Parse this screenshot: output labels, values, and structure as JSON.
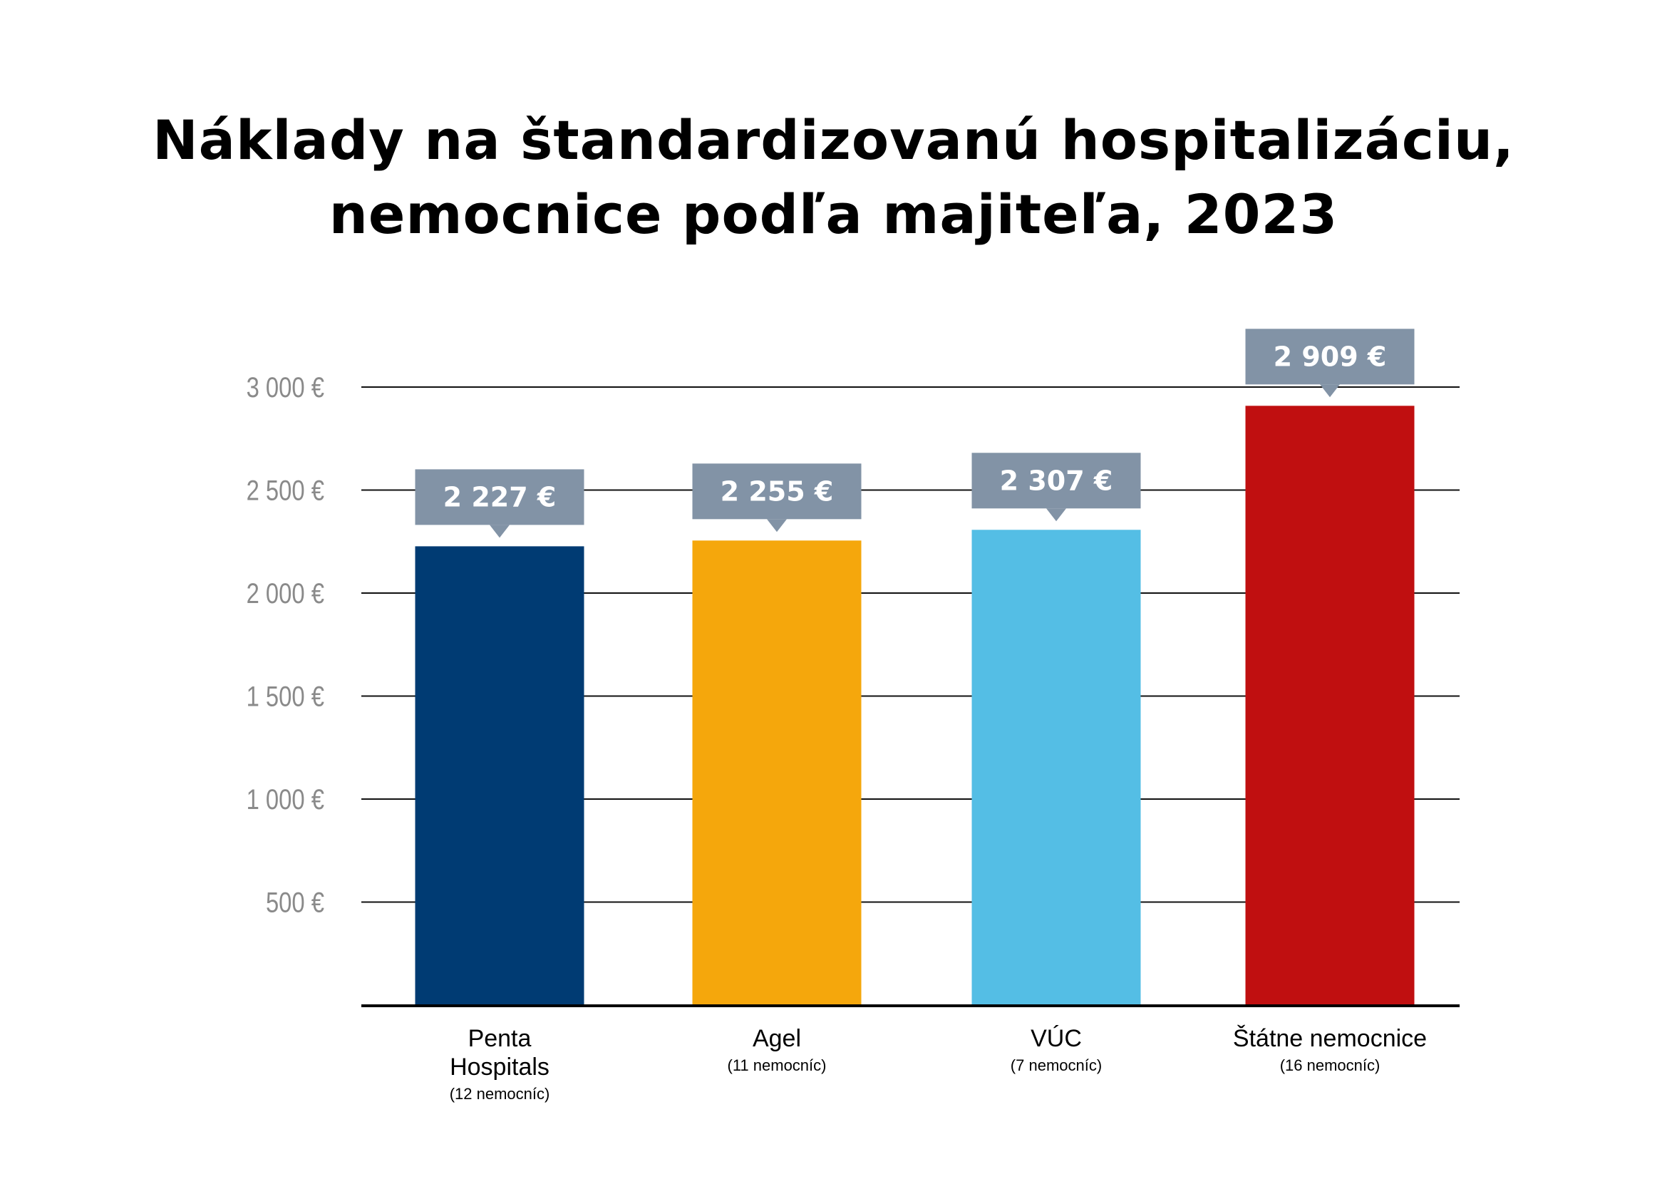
{
  "chart_data": {
    "type": "bar",
    "title_lines": [
      "Náklady na štandardizovanú hospitalizáciu,",
      "nemocnice podľa majiteľa, 2023"
    ],
    "categories": [
      {
        "name_lines": [
          "Penta",
          "Hospitals"
        ],
        "sub": "(12 nemocníc)"
      },
      {
        "name_lines": [
          "Agel"
        ],
        "sub": "(11 nemocníc)"
      },
      {
        "name_lines": [
          "VÚC"
        ],
        "sub": "(7 nemocníc)"
      },
      {
        "name_lines": [
          "Štátne nemocnice"
        ],
        "sub": "(16 nemocníc)"
      }
    ],
    "values": [
      2227,
      2255,
      2307,
      2909
    ],
    "data_labels": [
      "2 227 €",
      "2 255 €",
      "2 307 €",
      "2 909 €"
    ],
    "colors": [
      "#003b73",
      "#f5a70c",
      "#54bee5",
      "#c00f10"
    ],
    "label_box_color": "#8293a6",
    "yticks": [
      500,
      1000,
      1500,
      2000,
      2500,
      3000
    ],
    "ytick_labels": [
      "500 €",
      "1 000 €",
      "1 500 €",
      "2 000 €",
      "2 500 €",
      "3 000 €"
    ],
    "ylim": [
      0,
      3000
    ],
    "grid": true,
    "xlabel": "",
    "ylabel": ""
  }
}
